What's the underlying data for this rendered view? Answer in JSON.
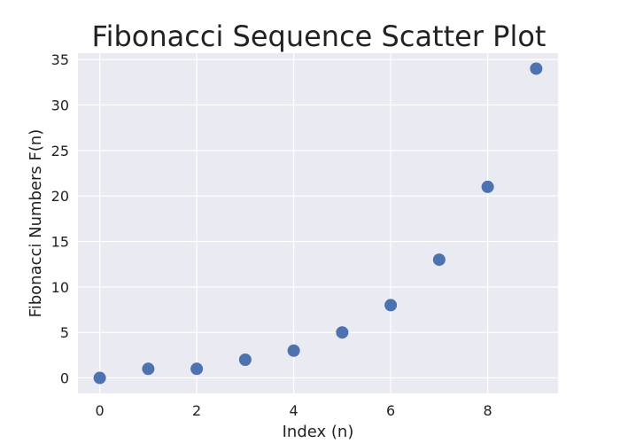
{
  "chart_data": {
    "type": "scatter",
    "title": "Fibonacci Sequence Scatter Plot",
    "xlabel": "Index (n)",
    "ylabel": "Fibonacci Numbers F(n)",
    "x": [
      0,
      1,
      2,
      3,
      4,
      5,
      6,
      7,
      8,
      9
    ],
    "y": [
      0,
      1,
      1,
      2,
      3,
      5,
      8,
      13,
      21,
      34
    ],
    "xlim": [
      -0.45,
      9.45
    ],
    "ylim": [
      -1.7,
      35.7
    ],
    "xticks": [
      0,
      2,
      4,
      6,
      8
    ],
    "yticks": [
      0,
      5,
      10,
      15,
      20,
      25,
      30,
      35
    ],
    "grid": true,
    "marker_color": "#4c72b0",
    "background_color": "#eaeaf2",
    "legend": "none"
  }
}
